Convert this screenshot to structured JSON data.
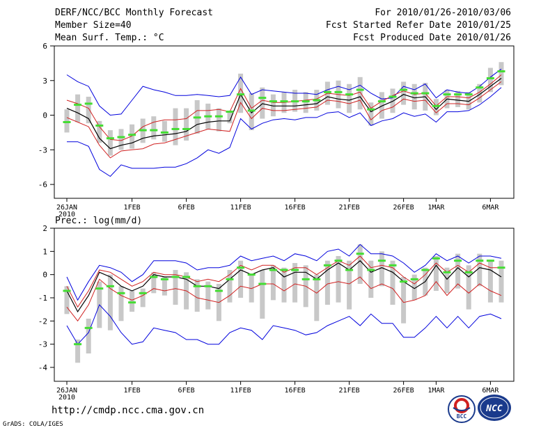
{
  "header": {
    "title": "DERF/NCC/BCC Monthly Forecast",
    "members": "Member Size=40",
    "variable": "Mean Surf. Temp.: °C",
    "period": "For 2010/01/26-2010/03/06",
    "started": "Fcst Started Refer Date 2010/01/25",
    "produced": "Fcst Produced Date 2010/01/26"
  },
  "footer": {
    "url": "http://cmdp.ncc.cma.gov.cn",
    "grads": "GrADS: COLA/IGES",
    "logo_bcc": "BCC",
    "logo_ncc": "NCC"
  },
  "chart_data": [
    {
      "type": "line",
      "title": "Mean Surf. Temp.: °C",
      "ylim": [
        -7.2,
        6
      ],
      "yticks": [
        6,
        3,
        0,
        -3,
        -6
      ],
      "x_range": [
        0,
        40
      ],
      "x_ticks": [
        {
          "x": 0,
          "label": "26JAN",
          "sub": "2010"
        },
        {
          "x": 6,
          "label": "1FEB"
        },
        {
          "x": 11,
          "label": "6FEB"
        },
        {
          "x": 16,
          "label": "11FEB"
        },
        {
          "x": 21,
          "label": "16FEB"
        },
        {
          "x": 26,
          "label": "21FEB"
        },
        {
          "x": 31,
          "label": "26FEB"
        },
        {
          "x": 34,
          "label": "1MAR"
        },
        {
          "x": 39,
          "label": "6MAR"
        }
      ],
      "colors": {
        "mean": "#000000",
        "spread": "#d02020",
        "extreme": "#0000dd",
        "obs": "#44dd33",
        "box": "#c8c8c8"
      },
      "series": [
        {
          "name": "upper",
          "values": [
            3.5,
            2.9,
            2.5,
            0.8,
            0.0,
            0.1,
            1.3,
            2.5,
            2.2,
            2.0,
            1.7,
            1.7,
            1.8,
            1.7,
            1.6,
            1.7,
            3.3,
            1.8,
            2.2,
            2.1,
            2.0,
            1.9,
            1.9,
            1.8,
            2.2,
            2.5,
            2.2,
            2.6,
            1.9,
            1.4,
            1.5,
            2.5,
            2.2,
            2.7,
            1.5,
            2.2,
            2.0,
            1.9,
            2.5,
            3.3,
            4.0
          ]
        },
        {
          "name": "upper_spread",
          "values": [
            1.3,
            1.0,
            0.6,
            -1.0,
            -2.1,
            -2.2,
            -1.8,
            -1.0,
            -0.6,
            -0.4,
            -0.4,
            -0.3,
            0.4,
            0.4,
            0.5,
            0.3,
            2.3,
            0.6,
            1.3,
            1.1,
            1.1,
            1.2,
            1.3,
            1.4,
            1.9,
            1.8,
            1.7,
            2.0,
            0.6,
            1.2,
            1.7,
            2.1,
            1.8,
            1.9,
            0.8,
            1.6,
            1.6,
            1.5,
            2.0,
            2.7,
            3.5
          ]
        },
        {
          "name": "mean",
          "values": [
            0.6,
            0.2,
            -0.3,
            -2.0,
            -2.9,
            -2.6,
            -2.4,
            -2.0,
            -1.8,
            -1.7,
            -1.6,
            -1.4,
            -0.8,
            -0.6,
            -0.5,
            -0.5,
            1.8,
            0.2,
            1.0,
            0.8,
            0.8,
            0.8,
            0.9,
            1.0,
            1.6,
            1.4,
            1.3,
            1.6,
            0.3,
            0.8,
            1.2,
            1.8,
            1.5,
            1.6,
            0.5,
            1.4,
            1.3,
            1.2,
            1.8,
            2.5,
            3.2
          ]
        },
        {
          "name": "lower_spread",
          "values": [
            -0.2,
            -0.6,
            -1.0,
            -2.6,
            -3.7,
            -3.1,
            -3.0,
            -2.9,
            -2.5,
            -2.4,
            -2.1,
            -1.8,
            -1.5,
            -1.2,
            -1.3,
            -1.4,
            1.1,
            -0.3,
            0.6,
            0.4,
            0.4,
            0.5,
            0.6,
            0.7,
            1.3,
            1.2,
            1.0,
            1.3,
            -0.4,
            0.4,
            0.7,
            1.4,
            1.2,
            1.3,
            0.2,
            1.0,
            1.0,
            0.9,
            1.5,
            2.2,
            2.9
          ]
        },
        {
          "name": "lower",
          "values": [
            -2.3,
            -2.3,
            -2.7,
            -4.7,
            -5.3,
            -4.3,
            -4.6,
            -4.6,
            -4.6,
            -4.5,
            -4.5,
            -4.2,
            -3.7,
            -3.0,
            -3.3,
            -2.8,
            -0.3,
            -1.2,
            -0.7,
            -0.4,
            -0.3,
            -0.4,
            -0.2,
            -0.2,
            0.2,
            0.3,
            -0.2,
            0.2,
            -0.9,
            -0.5,
            -0.3,
            0.2,
            -0.1,
            0.1,
            -0.6,
            0.3,
            0.3,
            0.4,
            0.9,
            1.6,
            2.4
          ]
        }
      ],
      "boxes": [
        {
          "x": 0,
          "lo": -1.5,
          "hi": 0.5
        },
        {
          "x": 1,
          "lo": -0.6,
          "hi": 1.8
        },
        {
          "x": 2,
          "lo": -0.7,
          "hi": 1.6
        },
        {
          "x": 3,
          "lo": -2.4,
          "hi": -0.5
        },
        {
          "x": 4,
          "lo": -3.5,
          "hi": -1.3
        },
        {
          "x": 5,
          "lo": -3.0,
          "hi": -1.2
        },
        {
          "x": 6,
          "lo": -2.9,
          "hi": -0.8
        },
        {
          "x": 7,
          "lo": -2.4,
          "hi": -0.3
        },
        {
          "x": 8,
          "lo": -2.1,
          "hi": -0.1
        },
        {
          "x": 9,
          "lo": -2.3,
          "hi": -0.5
        },
        {
          "x": 10,
          "lo": -2.6,
          "hi": 0.6
        },
        {
          "x": 11,
          "lo": -2.2,
          "hi": 0.6
        },
        {
          "x": 12,
          "lo": -1.6,
          "hi": 1.3
        },
        {
          "x": 13,
          "lo": -1.2,
          "hi": 1.0
        },
        {
          "x": 14,
          "lo": -1.4,
          "hi": 0.6
        },
        {
          "x": 15,
          "lo": -0.7,
          "hi": 0.4
        },
        {
          "x": 16,
          "lo": 0.2,
          "hi": 3.6
        },
        {
          "x": 17,
          "lo": -1.3,
          "hi": 1.9
        },
        {
          "x": 18,
          "lo": -0.3,
          "hi": 2.4
        },
        {
          "x": 19,
          "lo": -0.1,
          "hi": 1.8
        },
        {
          "x": 20,
          "lo": 0.2,
          "hi": 2.0
        },
        {
          "x": 21,
          "lo": 0.3,
          "hi": 2.2
        },
        {
          "x": 22,
          "lo": 0.2,
          "hi": 2.0
        },
        {
          "x": 23,
          "lo": 0.4,
          "hi": 2.2
        },
        {
          "x": 24,
          "lo": 0.9,
          "hi": 2.9
        },
        {
          "x": 25,
          "lo": 0.6,
          "hi": 3.0
        },
        {
          "x": 26,
          "lo": 0.2,
          "hi": 2.7
        },
        {
          "x": 27,
          "lo": 0.5,
          "hi": 3.3
        },
        {
          "x": 28,
          "lo": -0.9,
          "hi": 1.1
        },
        {
          "x": 29,
          "lo": -0.3,
          "hi": 2.0
        },
        {
          "x": 30,
          "lo": 0.2,
          "hi": 2.3
        },
        {
          "x": 31,
          "lo": 0.9,
          "hi": 2.9
        },
        {
          "x": 32,
          "lo": 0.5,
          "hi": 2.7
        },
        {
          "x": 33,
          "lo": 0.4,
          "hi": 2.8
        },
        {
          "x": 34,
          "lo": 0.0,
          "hi": 1.4
        },
        {
          "x": 35,
          "lo": 0.6,
          "hi": 2.2
        },
        {
          "x": 36,
          "lo": 0.7,
          "hi": 2.1
        },
        {
          "x": 37,
          "lo": 0.5,
          "hi": 2.0
        },
        {
          "x": 38,
          "lo": 1.1,
          "hi": 2.7
        },
        {
          "x": 39,
          "lo": 2.0,
          "hi": 4.1
        },
        {
          "x": 40,
          "lo": 2.6,
          "hi": 4.6
        }
      ],
      "obs": [
        -0.6,
        0.9,
        1.0,
        -0.9,
        -2.0,
        -1.9,
        -1.7,
        -1.3,
        -1.3,
        -1.5,
        -1.2,
        -1.2,
        -0.2,
        -0.1,
        -0.1,
        0.3,
        1.8,
        0.4,
        1.5,
        1.2,
        1.2,
        1.2,
        1.2,
        1.3,
        2.0,
        2.0,
        1.8,
        2.2,
        0.5,
        1.2,
        1.6,
        2.2,
        1.9,
        1.9,
        0.8,
        1.8,
        1.8,
        1.8,
        2.4,
        3.2,
        3.8
      ]
    },
    {
      "type": "line",
      "title": "Prec.: log(mm/d)",
      "ylim": [
        -4.6,
        2
      ],
      "yticks": [
        2,
        1,
        0,
        -1,
        -2,
        -3,
        -4
      ],
      "x_range": [
        0,
        40
      ],
      "x_ticks": [
        {
          "x": 0,
          "label": "26JAN",
          "sub": "2010"
        },
        {
          "x": 6,
          "label": "1FEB"
        },
        {
          "x": 11,
          "label": "6FEB"
        },
        {
          "x": 16,
          "label": "11FEB"
        },
        {
          "x": 21,
          "label": "16FEB"
        },
        {
          "x": 26,
          "label": "21FEB"
        },
        {
          "x": 31,
          "label": "26FEB"
        },
        {
          "x": 34,
          "label": "1MAR"
        },
        {
          "x": 39,
          "label": "6MAR"
        }
      ],
      "colors": {
        "mean": "#000000",
        "spread": "#d02020",
        "extreme": "#0000dd",
        "obs": "#44dd33",
        "box": "#c8c8c8"
      },
      "series": [
        {
          "name": "upper",
          "values": [
            -0.1,
            -1.1,
            -0.3,
            0.4,
            0.3,
            0.1,
            -0.3,
            0.0,
            0.6,
            0.6,
            0.6,
            0.5,
            0.2,
            0.3,
            0.3,
            0.4,
            0.8,
            0.6,
            0.7,
            0.8,
            0.6,
            0.9,
            0.8,
            0.6,
            1.0,
            1.1,
            0.8,
            1.3,
            0.9,
            0.9,
            0.8,
            0.5,
            0.1,
            0.4,
            0.9,
            0.6,
            0.8,
            0.5,
            0.8,
            0.8,
            0.7
          ]
        },
        {
          "name": "upper_spread",
          "values": [
            -0.5,
            -1.4,
            -0.7,
            0.2,
            0.1,
            -0.2,
            -0.5,
            -0.3,
            0.1,
            0.0,
            0.0,
            -0.1,
            -0.3,
            -0.2,
            -0.3,
            0.0,
            0.4,
            0.2,
            0.4,
            0.4,
            0.1,
            0.3,
            0.3,
            0.0,
            0.3,
            0.6,
            0.4,
            0.8,
            0.3,
            0.4,
            0.3,
            -0.1,
            -0.4,
            0.0,
            0.5,
            0.1,
            0.4,
            0.1,
            0.5,
            0.3,
            0.3
          ]
        },
        {
          "name": "mean",
          "values": [
            -0.7,
            -1.6,
            -0.9,
            0.1,
            -0.1,
            -0.5,
            -0.7,
            -0.5,
            0.0,
            -0.1,
            -0.1,
            -0.2,
            -0.5,
            -0.5,
            -0.6,
            -0.2,
            0.2,
            0.0,
            0.2,
            0.3,
            -0.1,
            0.1,
            0.1,
            -0.2,
            0.2,
            0.5,
            0.2,
            0.6,
            0.1,
            0.3,
            0.1,
            -0.3,
            -0.6,
            -0.3,
            0.4,
            -0.2,
            0.3,
            -0.1,
            0.3,
            0.2,
            -0.1
          ]
        },
        {
          "name": "lower_spread",
          "values": [
            -1.4,
            -2.0,
            -1.3,
            -0.2,
            -0.6,
            -0.9,
            -1.1,
            -0.9,
            -0.6,
            -0.7,
            -0.6,
            -0.7,
            -1.0,
            -1.1,
            -1.2,
            -0.9,
            -0.5,
            -0.6,
            -0.4,
            -0.4,
            -0.7,
            -0.4,
            -0.5,
            -0.8,
            -0.4,
            -0.3,
            -0.4,
            -0.1,
            -0.6,
            -0.4,
            -0.6,
            -1.2,
            -1.1,
            -0.9,
            -0.3,
            -0.9,
            -0.4,
            -0.8,
            -0.4,
            -0.7,
            -0.9
          ]
        },
        {
          "name": "lower",
          "values": [
            -2.2,
            -3.0,
            -2.5,
            -1.3,
            -1.8,
            -2.5,
            -3.0,
            -2.9,
            -2.3,
            -2.4,
            -2.5,
            -2.8,
            -2.8,
            -3.0,
            -3.0,
            -2.5,
            -2.3,
            -2.4,
            -2.8,
            -2.2,
            -2.3,
            -2.4,
            -2.6,
            -2.5,
            -2.2,
            -2.0,
            -1.8,
            -2.2,
            -1.7,
            -2.1,
            -2.1,
            -2.7,
            -2.7,
            -2.3,
            -1.8,
            -2.3,
            -1.8,
            -2.3,
            -1.8,
            -1.7,
            -1.9
          ]
        }
      ],
      "boxes": [
        {
          "x": 0,
          "lo": -1.7,
          "hi": -0.5
        },
        {
          "x": 1,
          "lo": -3.8,
          "hi": -2.8
        },
        {
          "x": 2,
          "lo": -3.4,
          "hi": -1.9
        },
        {
          "x": 3,
          "lo": -2.3,
          "hi": -0.3
        },
        {
          "x": 4,
          "lo": -2.4,
          "hi": 0.0
        },
        {
          "x": 5,
          "lo": -2.0,
          "hi": -0.5
        },
        {
          "x": 6,
          "lo": -1.6,
          "hi": -0.7
        },
        {
          "x": 7,
          "lo": -1.4,
          "hi": -0.6
        },
        {
          "x": 8,
          "lo": -0.8,
          "hi": 0.1
        },
        {
          "x": 9,
          "lo": -0.9,
          "hi": -0.1
        },
        {
          "x": 10,
          "lo": -1.3,
          "hi": 0.2
        },
        {
          "x": 11,
          "lo": -1.5,
          "hi": 0.1
        },
        {
          "x": 12,
          "lo": -1.6,
          "hi": -0.2
        },
        {
          "x": 13,
          "lo": -1.5,
          "hi": -0.3
        },
        {
          "x": 14,
          "lo": -2.0,
          "hi": -0.4
        },
        {
          "x": 15,
          "lo": -1.2,
          "hi": 0.2
        },
        {
          "x": 16,
          "lo": -1.0,
          "hi": 0.6
        },
        {
          "x": 17,
          "lo": -1.2,
          "hi": 0.0
        },
        {
          "x": 18,
          "lo": -1.9,
          "hi": 0.2
        },
        {
          "x": 19,
          "lo": -1.1,
          "hi": 0.4
        },
        {
          "x": 20,
          "lo": -1.2,
          "hi": 0.3
        },
        {
          "x": 21,
          "lo": -1.2,
          "hi": 0.5
        },
        {
          "x": 22,
          "lo": -1.4,
          "hi": 0.4
        },
        {
          "x": 23,
          "lo": -2.0,
          "hi": 0.0
        },
        {
          "x": 24,
          "lo": -1.3,
          "hi": 0.6
        },
        {
          "x": 25,
          "lo": -1.2,
          "hi": 0.8
        },
        {
          "x": 26,
          "lo": -1.5,
          "hi": 0.6
        },
        {
          "x": 27,
          "lo": -0.4,
          "hi": 1.3
        },
        {
          "x": 28,
          "lo": -1.0,
          "hi": 0.6
        },
        {
          "x": 29,
          "lo": -0.5,
          "hi": 1.0
        },
        {
          "x": 30,
          "lo": -1.3,
          "hi": 0.6
        },
        {
          "x": 31,
          "lo": -2.1,
          "hi": -0.1
        },
        {
          "x": 32,
          "lo": -1.1,
          "hi": 0.0
        },
        {
          "x": 33,
          "lo": -0.9,
          "hi": 0.3
        },
        {
          "x": 34,
          "lo": -0.7,
          "hi": 0.8
        },
        {
          "x": 35,
          "lo": -0.8,
          "hi": 0.3
        },
        {
          "x": 36,
          "lo": -0.6,
          "hi": 0.9
        },
        {
          "x": 37,
          "lo": -1.5,
          "hi": 0.4
        },
        {
          "x": 38,
          "lo": -0.5,
          "hi": 0.9
        },
        {
          "x": 39,
          "lo": -1.2,
          "hi": 0.6
        },
        {
          "x": 40,
          "lo": -1.2,
          "hi": 0.6
        }
      ],
      "obs": [
        -0.7,
        -3.0,
        -2.3,
        -0.6,
        -0.5,
        -0.8,
        -1.2,
        -0.8,
        -0.1,
        -0.2,
        -0.1,
        -0.1,
        -0.5,
        -0.5,
        -0.7,
        -0.2,
        0.3,
        0.0,
        -0.4,
        0.2,
        0.2,
        0.2,
        -0.2,
        -0.2,
        0.4,
        0.6,
        0.2,
        0.9,
        0.2,
        0.6,
        0.4,
        -0.3,
        -0.2,
        0.2,
        0.7,
        0.1,
        0.6,
        0.1,
        0.6,
        0.6,
        0.3
      ]
    }
  ]
}
